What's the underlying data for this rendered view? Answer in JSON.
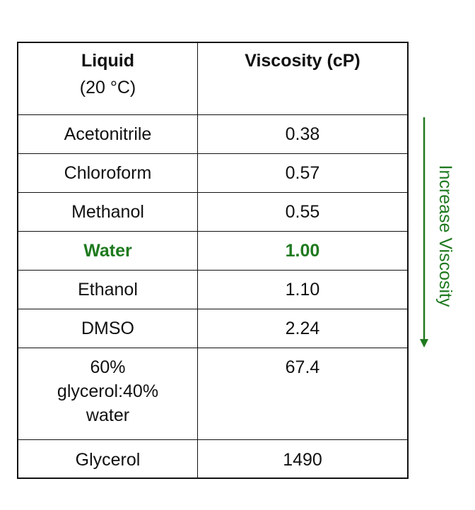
{
  "table": {
    "header": {
      "liquid_title": "Liquid",
      "liquid_sub": "(20 °C)",
      "viscosity_title": "Viscosity (cP)"
    },
    "rows": [
      {
        "liquid": "Acetonitrile",
        "viscosity": "0.38"
      },
      {
        "liquid": "Chloroform",
        "viscosity": "0.57"
      },
      {
        "liquid": "Methanol",
        "viscosity": "0.55"
      },
      {
        "liquid": "Water",
        "viscosity": "1.00",
        "highlight": true
      },
      {
        "liquid": "Ethanol",
        "viscosity": "1.10"
      },
      {
        "liquid": "DMSO",
        "viscosity": "2.24"
      },
      {
        "liquid_lines": [
          "60%",
          "glycerol:40%",
          "water"
        ],
        "viscosity": "67.4"
      },
      {
        "liquid": "Glycerol",
        "viscosity": "1490"
      }
    ]
  },
  "side_label": {
    "text": "Increase Viscosity",
    "color": "#1f7a1f"
  }
}
